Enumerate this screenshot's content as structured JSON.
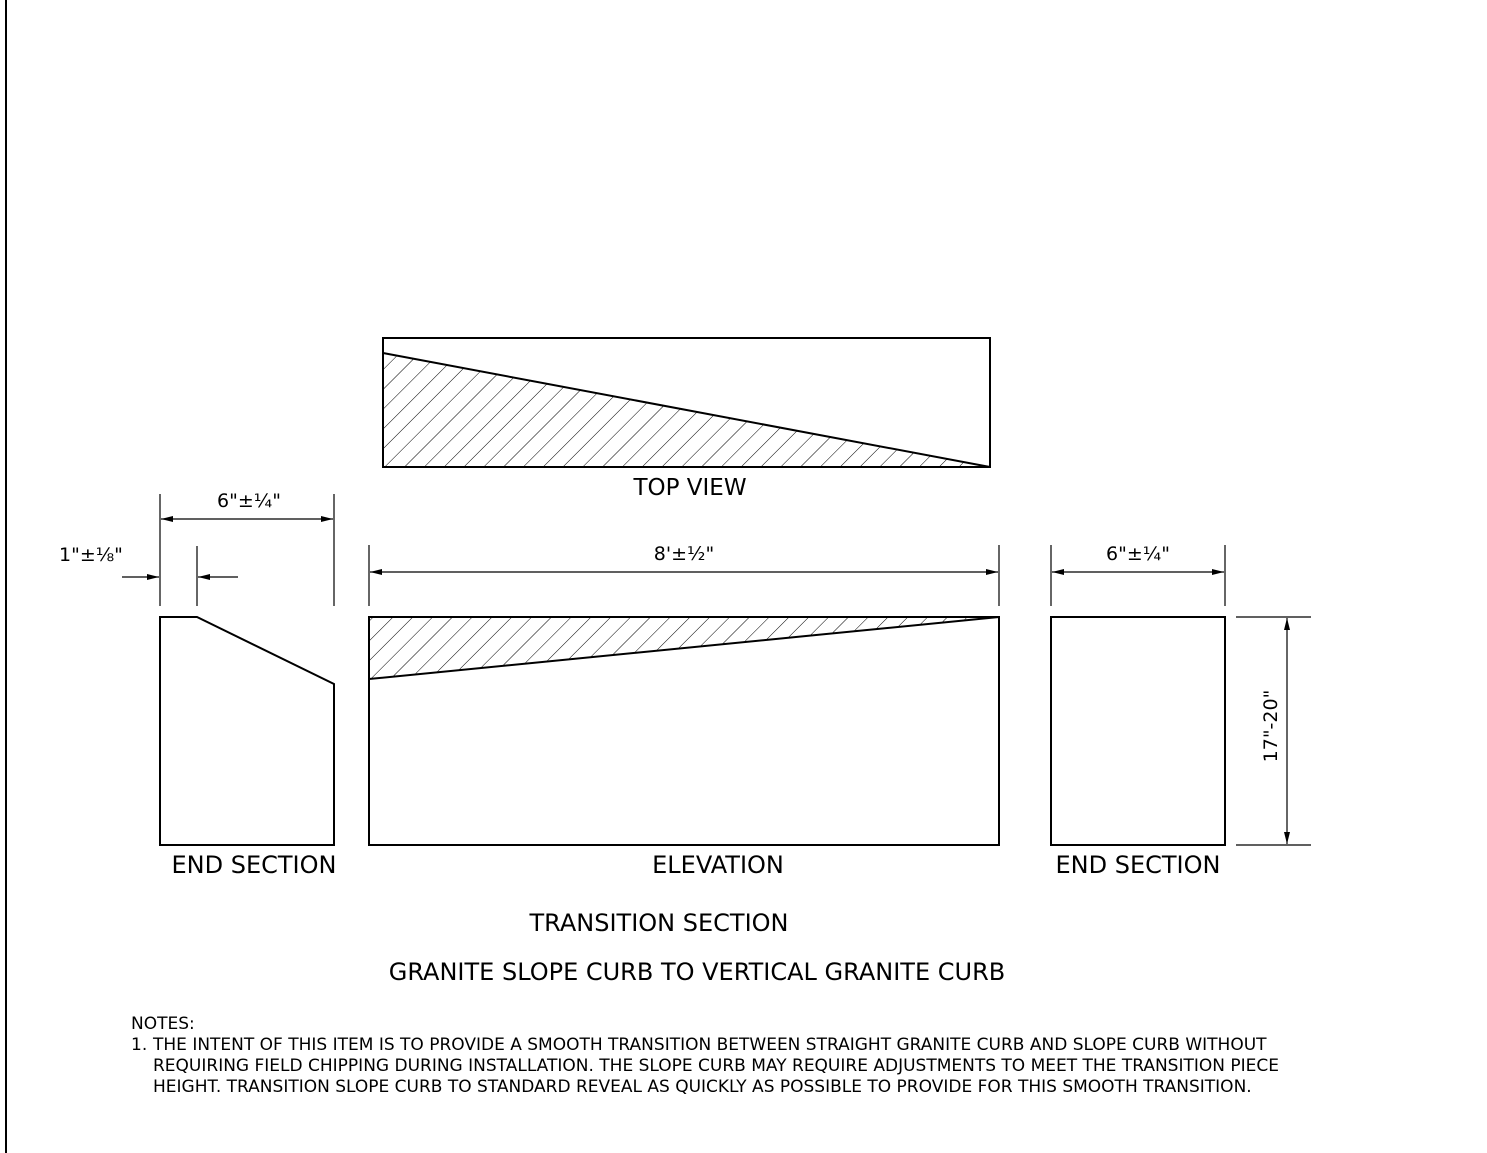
{
  "views": {
    "top_view": "TOP VIEW",
    "elevation": "ELEVATION",
    "end_section_left": "END SECTION",
    "end_section_right": "END SECTION"
  },
  "dimensions": {
    "left_width": "6\"±¼\"",
    "left_offset": "1\"±⅛\"",
    "elevation_length": "8'±½\"",
    "right_width": "6\"±¼\"",
    "right_height": "17\"-20\""
  },
  "titles": {
    "main": "TRANSITION SECTION",
    "subtitle": "GRANITE SLOPE CURB TO VERTICAL GRANITE CURB"
  },
  "notes": {
    "heading": "NOTES:",
    "items": [
      {
        "number": "1.",
        "text": "THE INTENT OF THIS ITEM IS TO PROVIDE A SMOOTH TRANSITION BETWEEN STRAIGHT GRANITE CURB AND SLOPE CURB WITHOUT REQUIRING FIELD CHIPPING DURING INSTALLATION. THE SLOPE CURB MAY REQUIRE ADJUSTMENTS TO MEET THE TRANSITION PIECE HEIGHT. TRANSITION SLOPE CURB TO STANDARD REVEAL AS QUICKLY AS POSSIBLE TO PROVIDE FOR THIS SMOOTH TRANSITION."
      }
    ]
  }
}
